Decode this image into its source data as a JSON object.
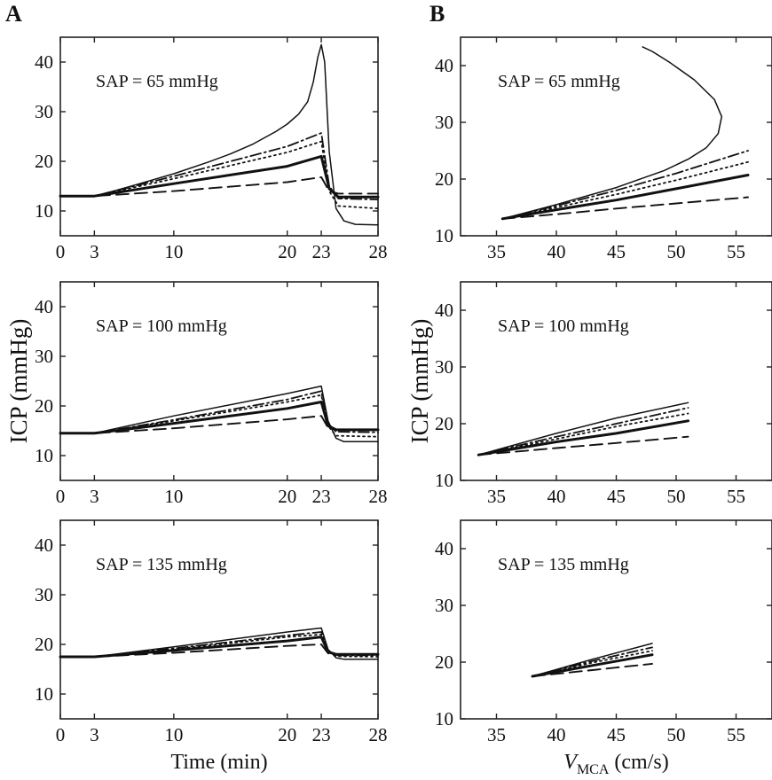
{
  "chart_data": [
    {
      "id": "A1",
      "type": "line",
      "panel_label": "A",
      "annotation": "SAP = 65 mmHg",
      "xlabel": "",
      "ylabel": "",
      "xlim": [
        0,
        28
      ],
      "ylim": [
        5,
        45
      ],
      "xticks": [
        0,
        3,
        10,
        20,
        23,
        28
      ],
      "yticks": [
        10,
        20,
        30,
        40
      ],
      "series": [
        {
          "style": "solid-thin",
          "x": [
            0,
            3,
            5,
            7,
            10,
            13,
            15,
            17,
            19,
            20,
            21,
            21.8,
            22.3,
            22.7,
            23,
            23.3,
            23.7,
            24.3,
            25,
            26,
            28
          ],
          "y": [
            13,
            13,
            14.2,
            15.5,
            17.5,
            19.8,
            21.5,
            23.5,
            26,
            27.5,
            29.5,
            32,
            36,
            41,
            43.5,
            40,
            22,
            10.5,
            8,
            7.3,
            7.2
          ]
        },
        {
          "style": "dashdot",
          "x": [
            0,
            3,
            10,
            20,
            23,
            23.7,
            24.5,
            28
          ],
          "y": [
            13,
            13,
            17,
            23,
            25.7,
            15,
            12.5,
            12.3
          ]
        },
        {
          "style": "dotted",
          "x": [
            0,
            3,
            10,
            20,
            23,
            23.7,
            24.5,
            28
          ],
          "y": [
            13,
            13,
            16.5,
            21.8,
            24,
            14,
            11,
            10.5
          ]
        },
        {
          "style": "solid-thick",
          "x": [
            0,
            3,
            10,
            20,
            23,
            23.7,
            24.5,
            28
          ],
          "y": [
            13,
            13,
            15.5,
            19,
            21,
            14.5,
            12.8,
            12.8
          ]
        },
        {
          "style": "dashed",
          "x": [
            0,
            3,
            10,
            20,
            23,
            23.7,
            24.5,
            28
          ],
          "y": [
            13,
            13,
            14,
            15.8,
            16.8,
            14,
            13.5,
            13.5
          ]
        }
      ]
    },
    {
      "id": "A2",
      "type": "line",
      "annotation": "SAP = 100 mmHg",
      "xlabel": "",
      "ylabel": "ICP (mmHg)",
      "xlim": [
        0,
        28
      ],
      "ylim": [
        5,
        45
      ],
      "xticks": [
        0,
        3,
        10,
        20,
        23,
        28
      ],
      "yticks": [
        10,
        20,
        30,
        40
      ],
      "series": [
        {
          "style": "solid-thin",
          "x": [
            0,
            3,
            10,
            20,
            23,
            23.6,
            24.3,
            25,
            28
          ],
          "y": [
            14.5,
            14.5,
            18,
            22.5,
            24,
            17,
            13.5,
            12.8,
            12.8
          ]
        },
        {
          "style": "dashdot",
          "x": [
            0,
            3,
            10,
            20,
            23,
            23.6,
            24.3,
            28
          ],
          "y": [
            14.5,
            14.5,
            17.2,
            21.3,
            23,
            16.5,
            14.8,
            14.7
          ]
        },
        {
          "style": "dotted",
          "x": [
            0,
            3,
            10,
            20,
            23,
            23.6,
            24.3,
            28
          ],
          "y": [
            14.5,
            14.5,
            17,
            20.8,
            22.2,
            16,
            14,
            13.8
          ]
        },
        {
          "style": "solid-thick",
          "x": [
            0,
            3,
            10,
            20,
            23,
            23.6,
            24.3,
            28
          ],
          "y": [
            14.5,
            14.5,
            16.5,
            19.5,
            20.8,
            16,
            15.2,
            15.2
          ]
        },
        {
          "style": "dashed",
          "x": [
            0,
            3,
            10,
            20,
            23,
            23.6,
            24.3,
            28
          ],
          "y": [
            14.5,
            14.5,
            15.5,
            17.3,
            18,
            15.6,
            15.2,
            15.2
          ]
        }
      ]
    },
    {
      "id": "A3",
      "type": "line",
      "annotation": "SAP = 135 mmHg",
      "xlabel": "Time (min)",
      "ylabel": "",
      "xlim": [
        0,
        28
      ],
      "ylim": [
        5,
        45
      ],
      "xticks": [
        0,
        3,
        10,
        20,
        23,
        28
      ],
      "yticks": [
        10,
        20,
        30,
        40
      ],
      "series": [
        {
          "style": "solid-thin",
          "x": [
            0,
            3,
            10,
            20,
            23,
            23.6,
            24.3,
            25,
            28
          ],
          "y": [
            17.5,
            17.5,
            19.5,
            22.5,
            23.3,
            19,
            17.3,
            17,
            17
          ]
        },
        {
          "style": "dashdot",
          "x": [
            0,
            3,
            10,
            20,
            23,
            23.6,
            24.3,
            28
          ],
          "y": [
            17.5,
            17.5,
            19.2,
            21.8,
            22.5,
            18.8,
            17.8,
            17.8
          ]
        },
        {
          "style": "dotted",
          "x": [
            0,
            3,
            10,
            20,
            23,
            23.6,
            24.3,
            28
          ],
          "y": [
            17.5,
            17.5,
            19,
            21.5,
            22,
            18.5,
            17.6,
            17.5
          ]
        },
        {
          "style": "solid-thick",
          "x": [
            0,
            3,
            10,
            20,
            23,
            23.6,
            24.3,
            28
          ],
          "y": [
            17.5,
            17.5,
            18.8,
            20.7,
            21.5,
            18.5,
            18,
            18
          ]
        },
        {
          "style": "dashed",
          "x": [
            0,
            3,
            10,
            20,
            23,
            23.6,
            24.3,
            28
          ],
          "y": [
            17.5,
            17.5,
            18.3,
            19.7,
            20,
            18.2,
            18,
            18
          ]
        }
      ]
    },
    {
      "id": "B1",
      "type": "line",
      "panel_label": "B",
      "annotation": "SAP = 65 mmHg",
      "xlabel": "",
      "ylabel": "",
      "xlim": [
        32,
        58
      ],
      "ylim": [
        10,
        45
      ],
      "xticks": [
        35,
        40,
        45,
        50,
        55
      ],
      "yticks": [
        10,
        20,
        30,
        40
      ],
      "series": [
        {
          "style": "solid-thin",
          "x": [
            35.5,
            40,
            45,
            49,
            51,
            52.5,
            53.5,
            53.8,
            53.2,
            51.5,
            49.5,
            48,
            47.2
          ],
          "y": [
            13,
            15.5,
            18.5,
            21.5,
            23.5,
            25.5,
            28,
            31,
            34,
            37.5,
            40.5,
            42.5,
            43.3
          ]
        },
        {
          "style": "dashdot",
          "x": [
            35.5,
            40,
            45,
            50,
            56
          ],
          "y": [
            13,
            15.3,
            18,
            21,
            25
          ]
        },
        {
          "style": "dotted",
          "x": [
            35.5,
            40,
            45,
            50,
            56
          ],
          "y": [
            13,
            15,
            17.3,
            19.8,
            23
          ]
        },
        {
          "style": "solid-thick",
          "x": [
            35.5,
            40,
            45,
            50,
            56
          ],
          "y": [
            13,
            14.6,
            16.3,
            18.3,
            20.7
          ]
        },
        {
          "style": "dashed",
          "x": [
            35.5,
            40,
            45,
            50,
            56
          ],
          "y": [
            13,
            13.8,
            14.8,
            15.7,
            16.8
          ]
        }
      ]
    },
    {
      "id": "B2",
      "type": "line",
      "annotation": "SAP = 100 mmHg",
      "xlabel": "",
      "ylabel": "ICP (mmHg)",
      "xlim": [
        32,
        58
      ],
      "ylim": [
        10,
        45
      ],
      "xticks": [
        35,
        40,
        45,
        50,
        55
      ],
      "yticks": [
        10,
        20,
        30,
        40
      ],
      "series": [
        {
          "style": "solid-thin",
          "x": [
            33.5,
            40,
            45,
            51
          ],
          "y": [
            14.5,
            18.3,
            21,
            23.7
          ]
        },
        {
          "style": "dashdot",
          "x": [
            33.5,
            40,
            45,
            51
          ],
          "y": [
            14.5,
            17.7,
            20,
            22.8
          ]
        },
        {
          "style": "dotted",
          "x": [
            33.5,
            40,
            45,
            51
          ],
          "y": [
            14.5,
            17.3,
            19.5,
            21.8
          ]
        },
        {
          "style": "solid-thick",
          "x": [
            33.5,
            40,
            45,
            51
          ],
          "y": [
            14.5,
            16.8,
            18.3,
            20.5
          ]
        },
        {
          "style": "dashed",
          "x": [
            33.5,
            40,
            45,
            51
          ],
          "y": [
            14.5,
            15.7,
            16.6,
            17.7
          ]
        }
      ]
    },
    {
      "id": "B3",
      "type": "line",
      "annotation": "SAP = 135 mmHg",
      "xlabel": "V_MCA (cm/s)",
      "xlabel_main": "V",
      "xlabel_sub": "MCA",
      "xlabel_unit": " (cm/s)",
      "ylabel": "",
      "xlim": [
        32,
        58
      ],
      "ylim": [
        10,
        45
      ],
      "xticks": [
        35,
        40,
        45,
        50,
        55
      ],
      "yticks": [
        10,
        20,
        30,
        40
      ],
      "series": [
        {
          "style": "solid-thin",
          "x": [
            38,
            43,
            48
          ],
          "y": [
            17.5,
            20.5,
            23.3
          ]
        },
        {
          "style": "dashdot",
          "x": [
            38,
            43,
            48
          ],
          "y": [
            17.5,
            20.2,
            22.6
          ]
        },
        {
          "style": "dotted",
          "x": [
            38,
            43,
            48
          ],
          "y": [
            17.5,
            19.9,
            22
          ]
        },
        {
          "style": "solid-thick",
          "x": [
            38,
            43,
            48
          ],
          "y": [
            17.5,
            19.4,
            21.3
          ]
        },
        {
          "style": "dashed",
          "x": [
            38,
            43,
            48
          ],
          "y": [
            17.5,
            18.6,
            19.7
          ]
        }
      ]
    }
  ]
}
